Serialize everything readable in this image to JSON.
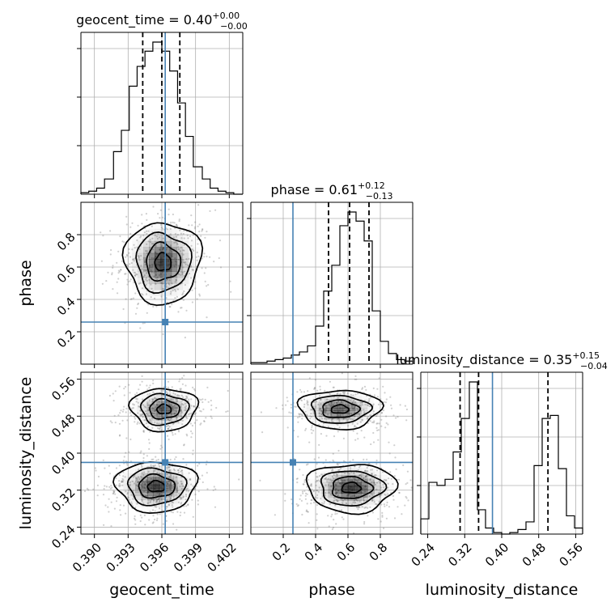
{
  "chart_data": {
    "type": "corner",
    "parameters": [
      "geocent_time",
      "phase",
      "luminosity_distance"
    ],
    "truth": {
      "geocent_time": 0.3963,
      "phase": 0.26,
      "luminosity_distance": 0.38
    },
    "colors": {
      "truth": "#4682b4",
      "hist": "#000000",
      "grid": "#b0b0b0",
      "points": "#777777",
      "density": "#000000"
    },
    "grid": true,
    "ranges": {
      "geocent_time": [
        0.3888,
        0.4032
      ],
      "phase": [
        0.0,
        1.0
      ],
      "luminosity_distance": [
        0.225,
        0.575
      ]
    },
    "ticks": {
      "geocent_time": [
        "0.390",
        "0.393",
        "0.396",
        "0.399",
        "0.402"
      ],
      "phase": [
        "0.2",
        "0.4",
        "0.6",
        "0.8"
      ],
      "luminosity_distance": [
        "0.24",
        "0.32",
        "0.40",
        "0.48",
        "0.56"
      ]
    },
    "quantiles": {
      "geocent_time": [
        0.3943,
        0.396,
        0.3976
      ],
      "phase": [
        0.48,
        0.61,
        0.73
      ],
      "luminosity_distance": [
        0.31,
        0.35,
        0.5
      ]
    },
    "titles": {
      "geocent_time": {
        "name": "geocent_time",
        "median": "0.40",
        "plus": "+0.00",
        "minus": "−0.00"
      },
      "phase": {
        "name": "phase",
        "median": "0.61",
        "plus": "+0.12",
        "minus": "−0.13"
      },
      "luminosity_distance": {
        "name": "luminosity_distance",
        "median": "0.35",
        "plus": "+0.15",
        "minus": "−0.04"
      }
    },
    "axis_labels": {
      "bottom": [
        "geocent_time",
        "phase",
        "luminosity_distance"
      ],
      "left": [
        "phase",
        "luminosity_distance"
      ]
    },
    "histograms": {
      "geocent_time": {
        "edges": [
          0.3888,
          0.3895,
          0.3902,
          0.3909,
          0.3917,
          0.3924,
          0.3931,
          0.3938,
          0.3945,
          0.3952,
          0.396,
          0.3967,
          0.3974,
          0.3981,
          0.3988,
          0.3996,
          0.4003,
          0.401,
          0.4017,
          0.4024,
          0.4032
        ],
        "counts": [
          0.01,
          0.02,
          0.04,
          0.1,
          0.28,
          0.42,
          0.71,
          0.84,
          0.94,
          1.0,
          0.94,
          0.81,
          0.6,
          0.38,
          0.18,
          0.1,
          0.04,
          0.02,
          0.01,
          0.0
        ]
      },
      "phase": {
        "edges": [
          0.0,
          0.05,
          0.1,
          0.15,
          0.2,
          0.25,
          0.3,
          0.35,
          0.4,
          0.45,
          0.5,
          0.55,
          0.6,
          0.65,
          0.7,
          0.75,
          0.8,
          0.85,
          0.9,
          0.95,
          1.0
        ],
        "counts": [
          0.01,
          0.01,
          0.02,
          0.03,
          0.04,
          0.06,
          0.08,
          0.12,
          0.25,
          0.48,
          0.65,
          0.91,
          1.0,
          0.94,
          0.81,
          0.35,
          0.15,
          0.07,
          0.03,
          0.02
        ]
      },
      "luminosity_distance": {
        "edges": [
          0.225,
          0.2425,
          0.26,
          0.2775,
          0.295,
          0.3125,
          0.33,
          0.3475,
          0.365,
          0.3825,
          0.4,
          0.4175,
          0.435,
          0.4525,
          0.47,
          0.4875,
          0.505,
          0.5225,
          0.54,
          0.5575,
          0.575
        ],
        "counts": [
          0.1,
          0.34,
          0.32,
          0.36,
          0.54,
          0.76,
          1.0,
          0.16,
          0.04,
          0.01,
          0.0,
          0.01,
          0.03,
          0.08,
          0.45,
          0.76,
          0.78,
          0.43,
          0.12,
          0.04
        ]
      }
    },
    "density_2d": {
      "phase_vs_geocent_time": {
        "clusters": [
          {
            "cx": 0.3961,
            "cy": 0.63,
            "sx": 0.0016,
            "sy": 0.12,
            "weight": 1.0
          }
        ]
      },
      "luminosity_distance_vs_geocent_time": {
        "clusters": [
          {
            "cx": 0.3962,
            "cy": 0.495,
            "sx": 0.0014,
            "sy": 0.022,
            "weight": 0.8
          },
          {
            "cx": 0.3955,
            "cy": 0.328,
            "sx": 0.0017,
            "sy": 0.026,
            "weight": 1.0
          }
        ]
      },
      "luminosity_distance_vs_phase": {
        "clusters": [
          {
            "cx": 0.55,
            "cy": 0.495,
            "sx": 0.12,
            "sy": 0.02,
            "weight": 0.8
          },
          {
            "cx": 0.62,
            "cy": 0.325,
            "sx": 0.13,
            "sy": 0.025,
            "weight": 1.0
          }
        ]
      }
    }
  }
}
